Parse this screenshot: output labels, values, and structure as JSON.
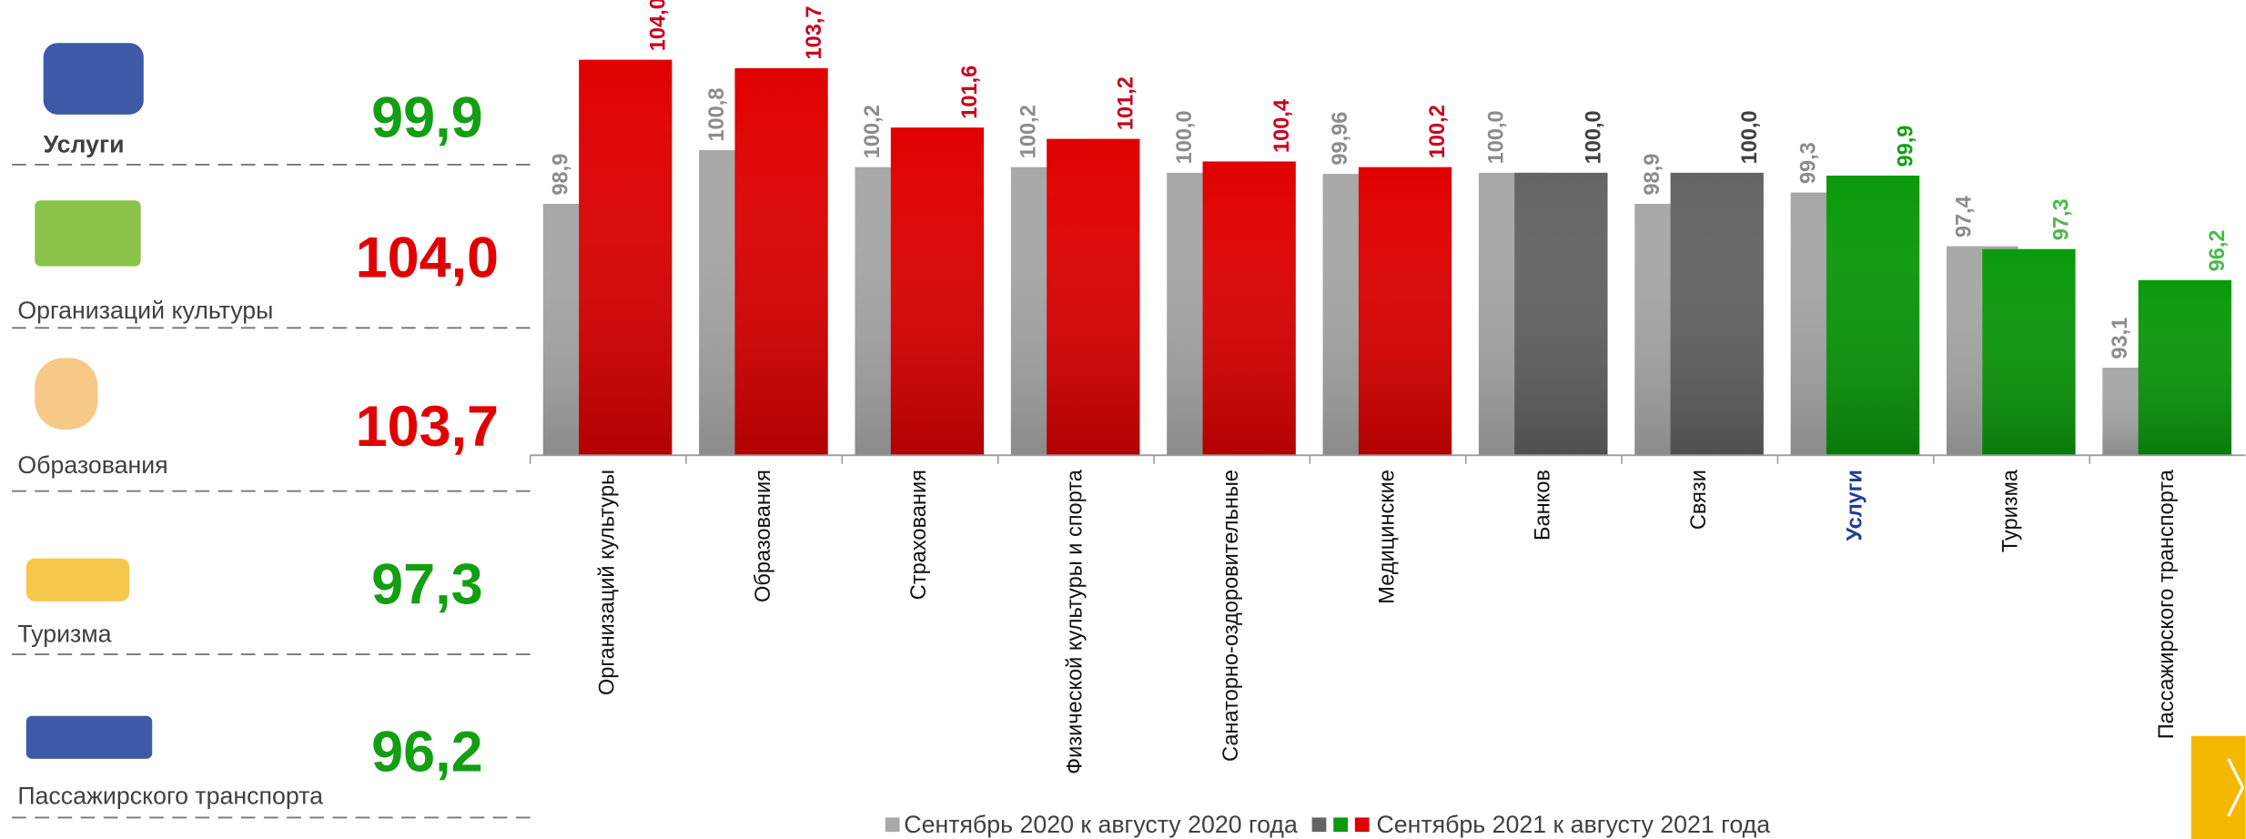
{
  "panel": {
    "items": [
      {
        "label": "Услуги",
        "value": "99,9",
        "color": "#139e13"
      },
      {
        "label": "Организаций культуры",
        "value": "104,0",
        "color": "#e00000"
      },
      {
        "label": "Образования",
        "value": "103,7",
        "color": "#e00000"
      },
      {
        "label": "Туризма",
        "value": "97,3",
        "color": "#139e13"
      },
      {
        "label": "Пассажирского транспорта",
        "value": "96,2",
        "color": "#139e13"
      }
    ]
  },
  "chart_data": {
    "type": "bar",
    "categories": [
      "Организаций культуры",
      "Образования",
      "Страхования",
      "Физической культуры и спорта",
      "Санаторно-оздоровительные",
      "Медицинские",
      "Банков",
      "Связи",
      "Услуги",
      "Туризма",
      "Пассажирского транспорта"
    ],
    "highlight_index": 8,
    "highlight_color": "#1f3d99",
    "series": [
      {
        "name": "Сентябрь 2020 к августу 2020 года",
        "color": "#a8a8a8",
        "label_color": "#8c8c8c",
        "values": [
          98.9,
          100.8,
          100.2,
          100.2,
          100.0,
          99.96,
          100.0,
          98.9,
          99.3,
          97.4,
          93.1
        ],
        "value_labels": [
          "98,9",
          "100,8",
          "100,2",
          "100,2",
          "100,0",
          "99,96",
          "100,0",
          "98,9",
          "99,3",
          "97,4",
          "93,1"
        ]
      },
      {
        "name": "Сентябрь 2021 к августу 2021 года",
        "colors": [
          "#e00000",
          "#e00000",
          "#e00000",
          "#e00000",
          "#e00000",
          "#e00000",
          "#646464",
          "#646464",
          "#0a9a0a",
          "#0a9a0a",
          "#0a9a0a"
        ],
        "label_colors": [
          "#c8001e",
          "#c8001e",
          "#c8001e",
          "#c8001e",
          "#c8001e",
          "#c8001e",
          "#404040",
          "#404040",
          "#139e13",
          "#4cb84c",
          "#4cb84c"
        ],
        "legend_colors": [
          "#646464",
          "#0a9a0a",
          "#e00000"
        ],
        "values": [
          104.0,
          103.7,
          101.6,
          101.2,
          100.4,
          100.2,
          100.0,
          100.0,
          99.9,
          97.3,
          96.2
        ],
        "value_labels": [
          "104,0",
          "103,7",
          "101,6",
          "101,2",
          "100,4",
          "100,2",
          "100,0",
          "100,0",
          "99,9",
          "97,3",
          "96,2"
        ]
      }
    ],
    "ylim": [
      90,
      105
    ]
  }
}
